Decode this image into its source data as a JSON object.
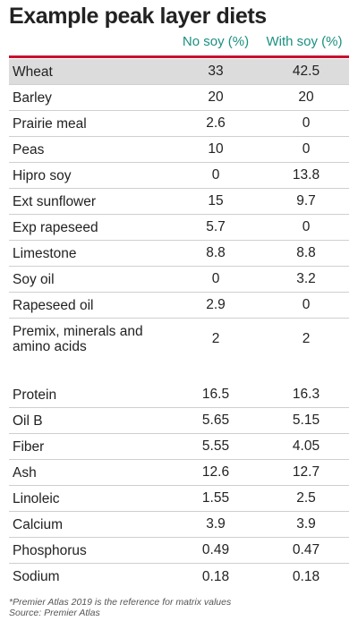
{
  "title": "Example peak layer diets",
  "columns": {
    "no_soy": "No soy (%)",
    "with_soy": "With soy (%)"
  },
  "colors": {
    "header_accent": "#1a9080",
    "rule": "#c8102e",
    "first_row_bg": "#dcdcdc"
  },
  "ingredients": [
    {
      "name": "Wheat",
      "no_soy": "33",
      "with_soy": "42.5"
    },
    {
      "name": "Barley",
      "no_soy": "20",
      "with_soy": "20"
    },
    {
      "name": "Prairie meal",
      "no_soy": "2.6",
      "with_soy": "0"
    },
    {
      "name": "Peas",
      "no_soy": "10",
      "with_soy": "0"
    },
    {
      "name": "Hipro soy",
      "no_soy": "0",
      "with_soy": "13.8"
    },
    {
      "name": "Ext sunflower",
      "no_soy": "15",
      "with_soy": "9.7"
    },
    {
      "name": "Exp rapeseed",
      "no_soy": "5.7",
      "with_soy": "0"
    },
    {
      "name": "Limestone",
      "no_soy": "8.8",
      "with_soy": "8.8"
    },
    {
      "name": "Soy oil",
      "no_soy": "0",
      "with_soy": "3.2"
    },
    {
      "name": "Rapeseed oil",
      "no_soy": "2.9",
      "with_soy": "0"
    },
    {
      "name": "Premix, minerals and amino acids",
      "no_soy": "2",
      "with_soy": "2"
    }
  ],
  "nutrients": [
    {
      "name": "Protein",
      "no_soy": "16.5",
      "with_soy": "16.3"
    },
    {
      "name": "Oil B",
      "no_soy": "5.65",
      "with_soy": "5.15"
    },
    {
      "name": "Fiber",
      "no_soy": "5.55",
      "with_soy": "4.05"
    },
    {
      "name": "Ash",
      "no_soy": "12.6",
      "with_soy": "12.7"
    },
    {
      "name": "Linoleic",
      "no_soy": "1.55",
      "with_soy": "2.5"
    },
    {
      "name": "Calcium",
      "no_soy": "3.9",
      "with_soy": "3.9"
    },
    {
      "name": "Phosphorus",
      "no_soy": "0.49",
      "with_soy": "0.47"
    },
    {
      "name": "Sodium",
      "no_soy": "0.18",
      "with_soy": "0.18"
    }
  ],
  "footnote": "*Premier Atlas 2019 is the reference for matrix values",
  "source": "Source: Premier Atlas"
}
